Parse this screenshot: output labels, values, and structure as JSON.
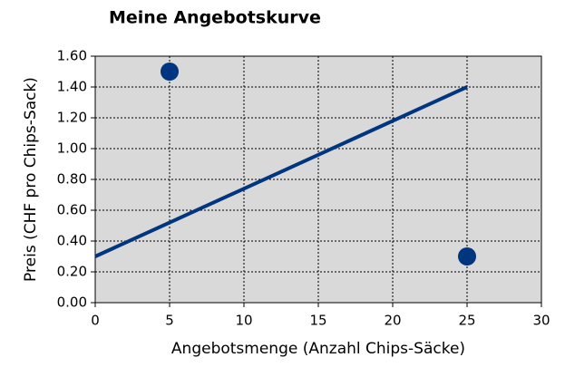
{
  "chart_data": {
    "type": "line",
    "title": "Meine Angebotskurve",
    "x_label": "Angebotsmenge (Anzahl Chips-Säcke)",
    "y_label": "Preis (CHF pro Chips-Sack)",
    "xlim": [
      0,
      30
    ],
    "xticks": [
      0,
      5,
      10,
      15,
      20,
      25,
      30
    ],
    "ylim": [
      0,
      1.6
    ],
    "yticks": [
      {
        "value": 0,
        "label": "0.00"
      },
      {
        "value": 0.2,
        "label": "0.20"
      },
      {
        "value": 0.4,
        "label": "0.40"
      },
      {
        "value": 0.6,
        "label": "0.60"
      },
      {
        "value": 0.8,
        "label": "0.80"
      },
      {
        "value": 1,
        "label": "1.00"
      },
      {
        "value": 1.2,
        "label": "1.20"
      },
      {
        "value": 1.4,
        "label": "1.40"
      },
      {
        "value": 1.6,
        "label": "1.60"
      }
    ],
    "grid": true,
    "background": "#d9d9d9",
    "lines": [
      {
        "x": [
          0,
          25
        ],
        "values": [
          0.3,
          1.4
        ],
        "color": "#003580"
      }
    ],
    "points": {
      "x": [
        5,
        25
      ],
      "values": [
        1.5,
        0.3
      ],
      "color": "#003580"
    }
  }
}
